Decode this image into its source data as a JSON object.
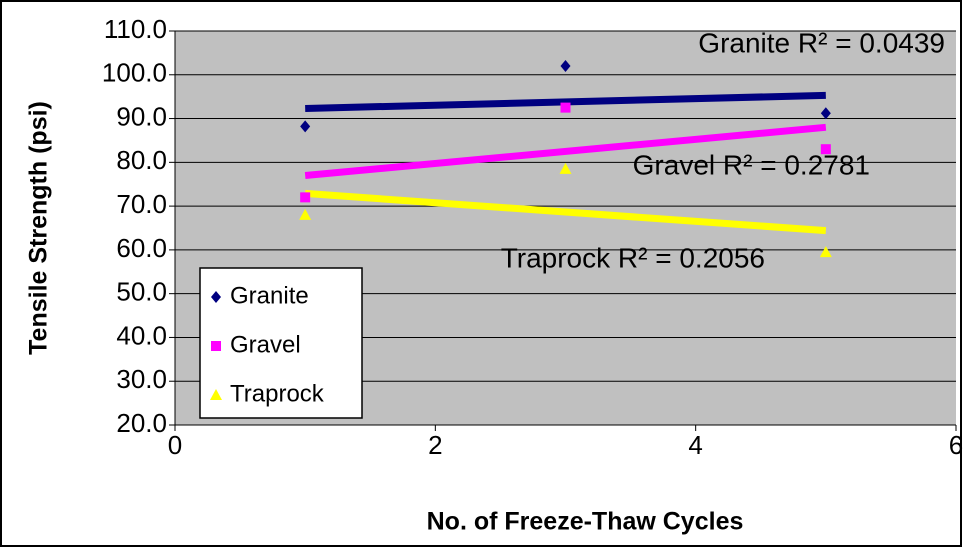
{
  "chart_data": {
    "type": "scatter",
    "x_label": "No. of Freeze-Thaw Cycles",
    "y_label": "Tensile Strength (psi)",
    "xlim": [
      0,
      6
    ],
    "xticks": [
      0,
      2,
      4,
      6
    ],
    "ylim": [
      20,
      110
    ],
    "yticks": [
      {
        "value": 20,
        "label": "20.0"
      },
      {
        "value": 30,
        "label": "30.0"
      },
      {
        "value": 40,
        "label": "40.0"
      },
      {
        "value": 50,
        "label": "50.0"
      },
      {
        "value": 60,
        "label": "60.0"
      },
      {
        "value": 70,
        "label": "70.0"
      },
      {
        "value": 80,
        "label": "80.0"
      },
      {
        "value": 90,
        "label": "90.0"
      },
      {
        "value": 100,
        "label": "100.0"
      },
      {
        "value": 110,
        "label": "110.0"
      }
    ],
    "grid": true,
    "legend": "lower left",
    "series": [
      {
        "name": "Granite",
        "color": "#000080",
        "marker": "diamond",
        "x": [
          1,
          3,
          5
        ],
        "values": [
          88.2,
          102,
          91.2
        ],
        "trendline": {
          "x": [
            1,
            5
          ],
          "values": [
            92.3,
            95.3
          ]
        },
        "annotation": "Granite R² = 0.0439"
      },
      {
        "name": "Gravel",
        "color": "#ff00ff",
        "marker": "square",
        "x": [
          1,
          3,
          5
        ],
        "values": [
          72,
          92.5,
          83
        ],
        "trendline": {
          "x": [
            1,
            5
          ],
          "values": [
            77,
            88
          ]
        },
        "annotation": "Gravel R² = 0.2781"
      },
      {
        "name": "Traprock",
        "color": "#ffff00",
        "marker": "triangle",
        "x": [
          1,
          3,
          5
        ],
        "values": [
          68,
          78.5,
          59.5
        ],
        "trendline": {
          "x": [
            1,
            5
          ],
          "values": [
            72.9,
            64.4
          ]
        },
        "annotation": "Traprock R² = 0.2056"
      }
    ]
  }
}
